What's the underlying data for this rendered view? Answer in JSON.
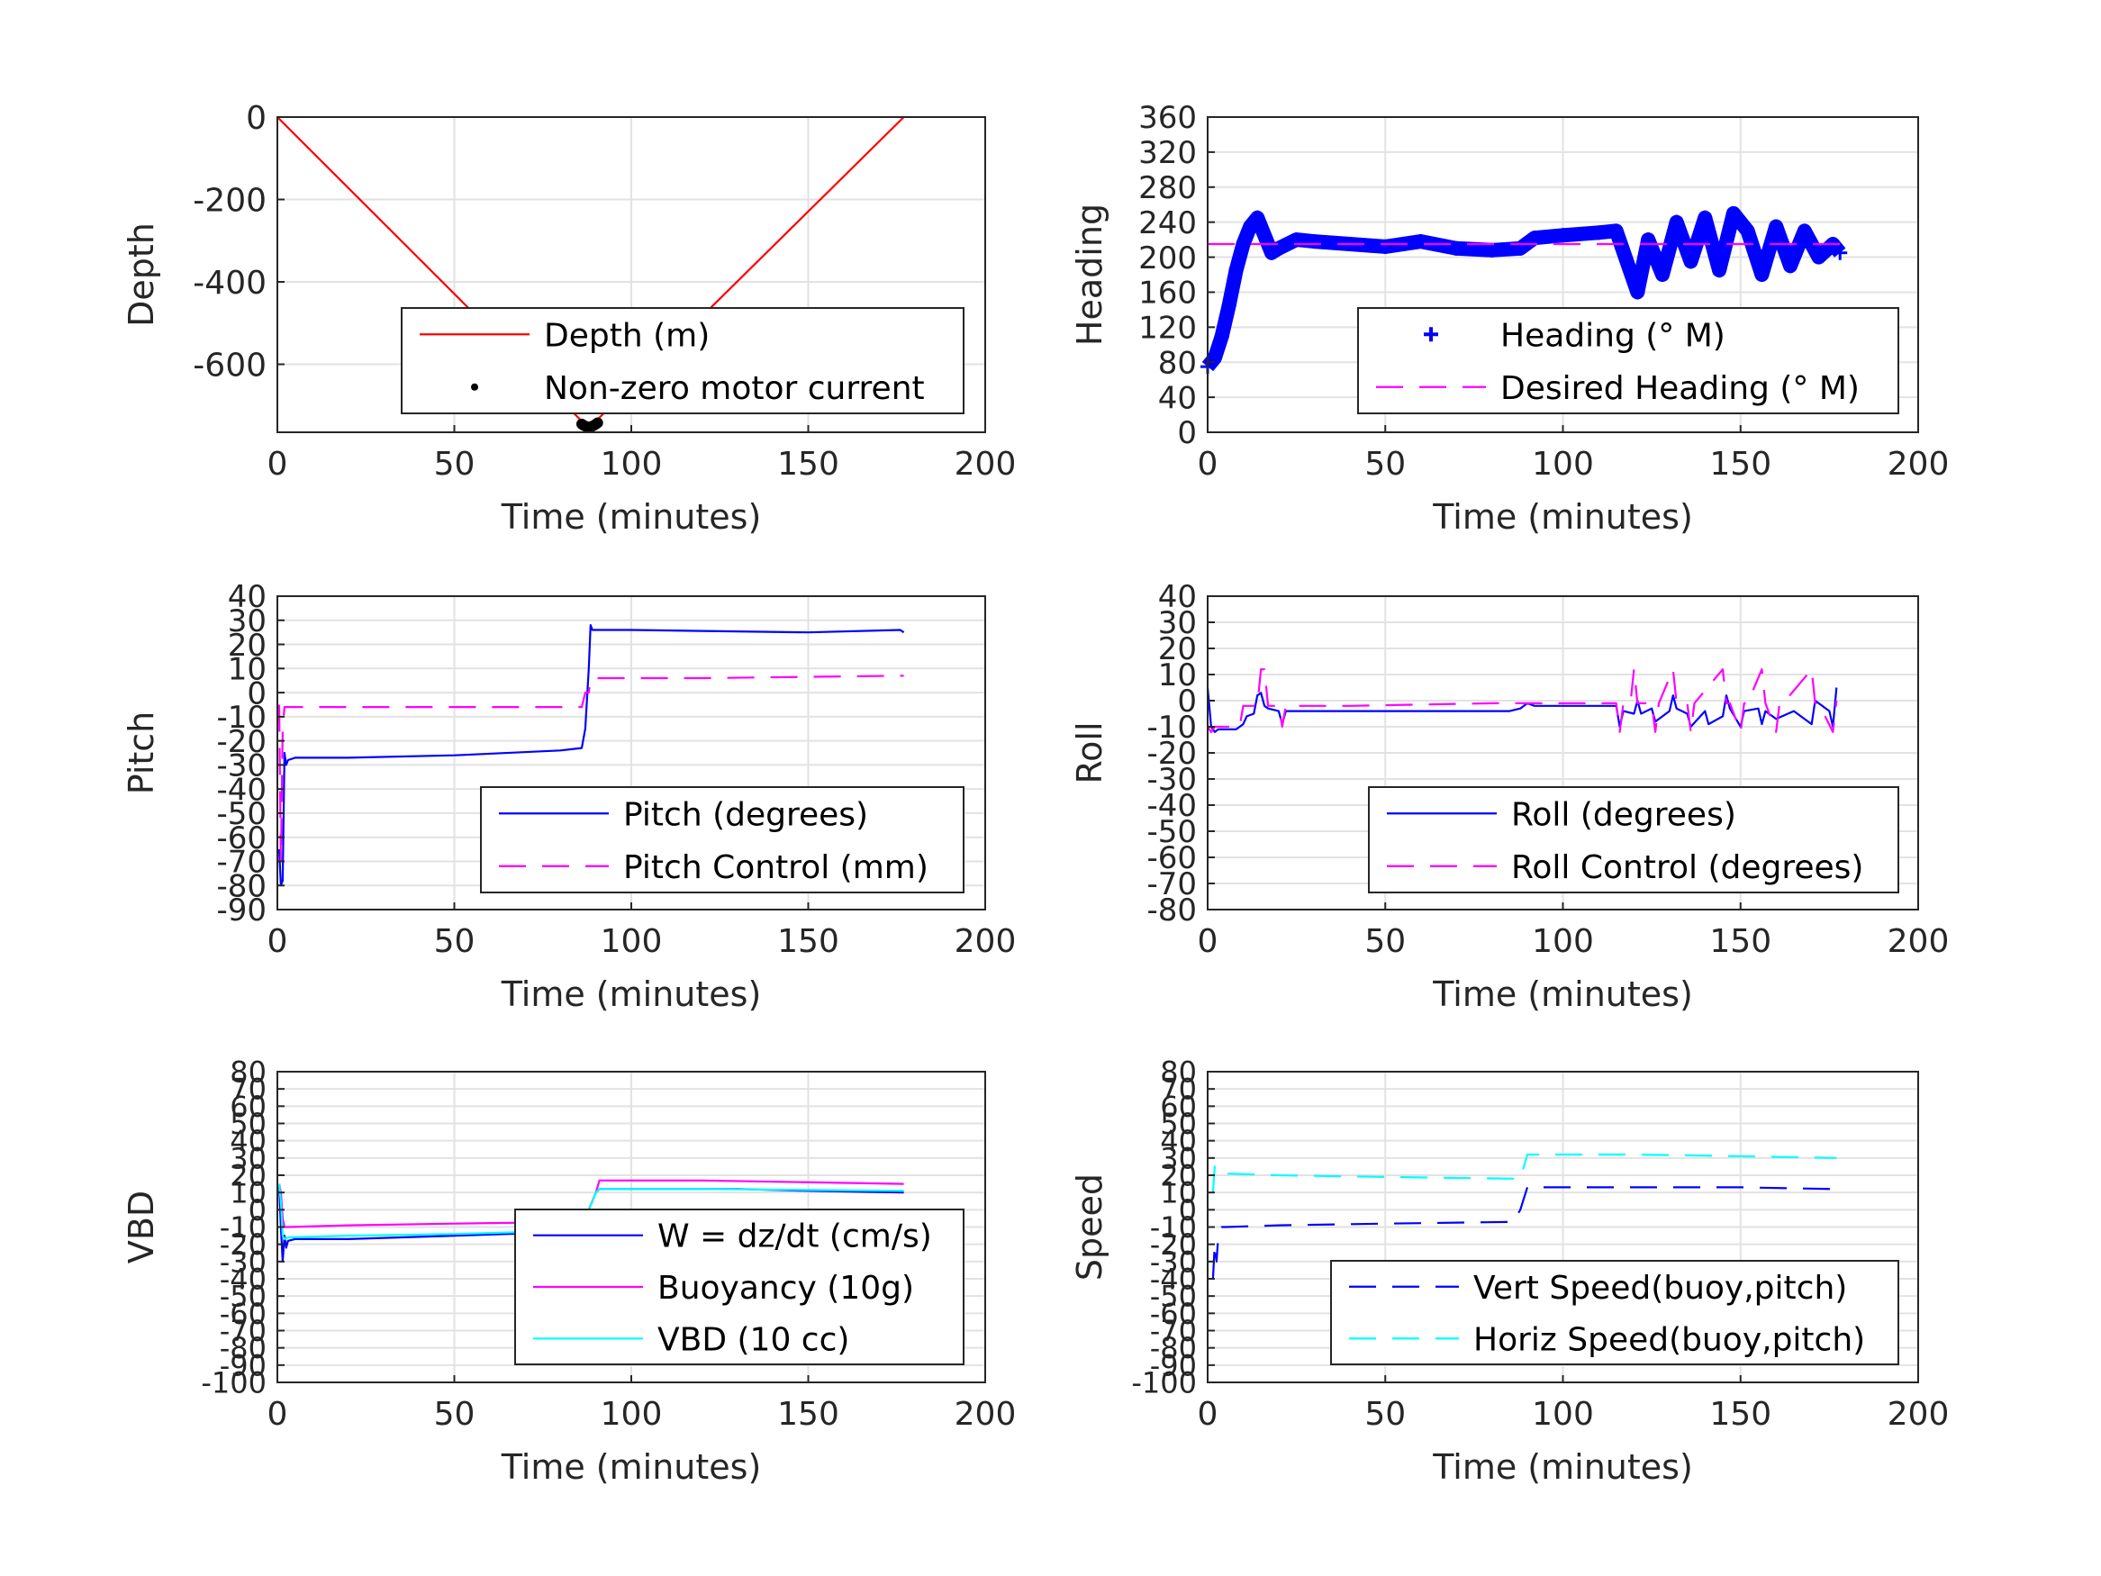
{
  "chart_data": [
    {
      "id": "depth",
      "type": "line",
      "xlabel": "Time (minutes)",
      "ylabel": "Depth",
      "xlim": [
        0,
        200
      ],
      "ylim": [
        -765,
        0
      ],
      "xticks": [
        0,
        50,
        100,
        150,
        200
      ],
      "yticks": [
        0,
        -200,
        -400,
        -600
      ],
      "grid": true,
      "legend_position": "bottom-right",
      "series": [
        {
          "name": "Depth (m)",
          "style": "solid",
          "marker": "none",
          "color": "#ff0000",
          "x": [
            0,
            88,
            177
          ],
          "y": [
            0,
            -755,
            0
          ]
        },
        {
          "name": "Non-zero motor current",
          "style": "none",
          "marker": "dot",
          "color": "#000000",
          "x": [
            86,
            86.5,
            87,
            87.5,
            88,
            88.5,
            89,
            89.5,
            90,
            90.5
          ],
          "y": [
            -745,
            -748,
            -750,
            -752,
            -753,
            -752,
            -750,
            -748,
            -745,
            -742
          ]
        }
      ]
    },
    {
      "id": "heading",
      "type": "line",
      "xlabel": "Time (minutes)",
      "ylabel": "Heading",
      "xlim": [
        0,
        200
      ],
      "ylim": [
        0,
        360
      ],
      "xticks": [
        0,
        50,
        100,
        150,
        200
      ],
      "yticks": [
        0,
        40,
        80,
        120,
        160,
        200,
        240,
        280,
        320,
        360
      ],
      "grid": true,
      "legend_position": "bottom-right",
      "series": [
        {
          "name": "Heading (° M)",
          "style": "thick",
          "marker": "plus",
          "color": "#0000ff",
          "x": [
            0,
            2,
            4,
            6,
            8,
            10,
            12,
            14,
            16,
            18,
            20,
            25,
            30,
            40,
            50,
            60,
            70,
            80,
            88,
            92,
            100,
            110,
            115,
            118,
            121,
            124,
            128,
            132,
            136,
            140,
            144,
            148,
            152,
            156,
            160,
            164,
            168,
            172,
            176,
            178
          ],
          "y": [
            75,
            85,
            110,
            145,
            185,
            215,
            235,
            245,
            225,
            205,
            210,
            220,
            218,
            215,
            212,
            218,
            210,
            208,
            210,
            222,
            225,
            228,
            230,
            195,
            160,
            220,
            180,
            240,
            195,
            245,
            185,
            250,
            230,
            180,
            235,
            190,
            230,
            200,
            215,
            205
          ]
        },
        {
          "name": "Desired Heading (° M)",
          "style": "dashed",
          "marker": "none",
          "color": "#ff00ff",
          "x": [
            0,
            178
          ],
          "y": [
            215,
            215
          ]
        }
      ]
    },
    {
      "id": "pitch",
      "type": "line",
      "xlabel": "Time (minutes)",
      "ylabel": "Pitch",
      "xlim": [
        0,
        200
      ],
      "ylim": [
        -90,
        40
      ],
      "xticks": [
        0,
        50,
        100,
        150,
        200
      ],
      "yticks": [
        -90,
        -80,
        -70,
        -60,
        -50,
        -40,
        -30,
        -20,
        -10,
        0,
        10,
        20,
        30,
        40
      ],
      "grid": true,
      "legend_position": "bottom-right",
      "series": [
        {
          "name": "Pitch (degrees)",
          "style": "solid",
          "marker": "none",
          "color": "#0000ff",
          "x": [
            0.5,
            1,
            1.5,
            2,
            2.5,
            3,
            5,
            20,
            50,
            80,
            86,
            87,
            88,
            88.5,
            89,
            90,
            100,
            150,
            176,
            177
          ],
          "y": [
            -65,
            -80,
            -78,
            -25,
            -30,
            -28,
            -27,
            -27,
            -26,
            -24,
            -23,
            -15,
            10,
            28,
            26,
            26,
            26,
            25,
            26,
            25
          ]
        },
        {
          "name": "Pitch Control (mm)",
          "style": "dashed",
          "marker": "none",
          "color": "#ff00ff",
          "x": [
            0.5,
            1,
            1.5,
            2,
            3,
            86,
            87,
            88,
            88.5,
            89,
            120,
            177
          ],
          "y": [
            -5,
            -70,
            -15,
            -6,
            -6,
            -6,
            0,
            0,
            6,
            6,
            6,
            7
          ]
        }
      ]
    },
    {
      "id": "roll",
      "type": "line",
      "xlabel": "Time (minutes)",
      "ylabel": "Roll",
      "xlim": [
        0,
        200
      ],
      "ylim": [
        -80,
        40
      ],
      "xticks": [
        0,
        50,
        100,
        150,
        200
      ],
      "yticks": [
        -80,
        -70,
        -60,
        -50,
        -40,
        -30,
        -20,
        -10,
        0,
        10,
        20,
        30,
        40
      ],
      "grid": true,
      "legend_position": "bottom-right",
      "series": [
        {
          "name": "Roll (degrees)",
          "style": "solid",
          "marker": "none",
          "color": "#0000ff",
          "x": [
            0,
            1,
            2,
            3,
            8,
            10,
            11,
            13,
            14,
            15,
            16,
            17,
            20,
            21,
            22,
            40,
            60,
            85,
            88,
            90,
            92,
            100,
            115,
            116,
            117,
            120,
            121,
            122,
            125,
            126,
            130,
            131,
            132,
            135,
            136,
            140,
            141,
            145,
            146,
            147,
            150,
            151,
            155,
            156,
            157,
            160,
            165,
            170,
            171,
            175,
            176,
            177
          ],
          "y": [
            5,
            -10,
            -12,
            -11,
            -11,
            -9,
            -6,
            -5,
            2,
            3,
            -2,
            -3,
            -4,
            -9,
            -4,
            -4,
            -4,
            -4,
            -3,
            -1,
            -2,
            -2,
            -2,
            -10,
            -4,
            -5,
            0,
            -5,
            -3,
            -8,
            -4,
            2,
            -3,
            -5,
            -10,
            -4,
            -9,
            -6,
            2,
            -3,
            -10,
            -4,
            -3,
            -9,
            -4,
            -7,
            -4,
            -9,
            0,
            -4,
            -10,
            5
          ]
        },
        {
          "name": "Roll Control (degrees)",
          "style": "dashed",
          "marker": "none",
          "color": "#ff00ff",
          "x": [
            0,
            1,
            2,
            9,
            10,
            14,
            15,
            16,
            17,
            20,
            21,
            22,
            40,
            80,
            110,
            115,
            116,
            117,
            119,
            120,
            121,
            122,
            125,
            126,
            127,
            131,
            132,
            133,
            135,
            136,
            137,
            145,
            146,
            147,
            150,
            151,
            152,
            156,
            157,
            160,
            161,
            162,
            170,
            171,
            172,
            176,
            177
          ],
          "y": [
            -10,
            -12,
            -10,
            -10,
            -2,
            -2,
            12,
            12,
            -2,
            -2,
            -10,
            -2,
            -2,
            -1,
            -1,
            -1,
            -12,
            -1,
            -1,
            12,
            -1,
            -1,
            -1,
            -12,
            -1,
            12,
            -1,
            -1,
            -1,
            -12,
            -1,
            12,
            -1,
            -1,
            -12,
            -1,
            -1,
            12,
            -1,
            -12,
            -1,
            -1,
            12,
            -1,
            -1,
            -12,
            0
          ]
        }
      ]
    },
    {
      "id": "vbd",
      "type": "line",
      "xlabel": "Time (minutes)",
      "ylabel": "VBD",
      "xlim": [
        0,
        200
      ],
      "ylim": [
        -100,
        80
      ],
      "xticks": [
        0,
        50,
        100,
        150,
        200
      ],
      "yticks": [
        -100,
        -90,
        -80,
        -70,
        -60,
        -50,
        -40,
        -30,
        -20,
        -10,
        0,
        10,
        20,
        30,
        40,
        50,
        60,
        70,
        80
      ],
      "grid": true,
      "legend_position": "bottom-right",
      "series": [
        {
          "name": "W = dz/dt (cm/s)",
          "style": "solid",
          "marker": "none",
          "color": "#0000ff",
          "x": [
            0.5,
            1,
            1.5,
            2,
            2.5,
            3,
            5,
            20,
            50,
            80,
            86,
            88,
            90,
            91,
            100,
            130,
            150,
            177
          ],
          "y": [
            15,
            -10,
            -30,
            -15,
            -22,
            -18,
            -17,
            -17,
            -15,
            -13,
            -12,
            0,
            10,
            12,
            12,
            12,
            11,
            10
          ]
        },
        {
          "name": "Buoyancy (10g)",
          "style": "solid",
          "marker": "none",
          "color": "#ff00ff",
          "x": [
            0.5,
            1,
            1.5,
            2,
            3,
            20,
            50,
            86,
            88,
            90,
            91,
            120,
            177
          ],
          "y": [
            15,
            10,
            -5,
            -10,
            -10,
            -9,
            -8,
            -7,
            0,
            10,
            17,
            17,
            15
          ]
        },
        {
          "name": "VBD (10 cc)",
          "style": "solid",
          "marker": "none",
          "color": "#00ffff",
          "x": [
            0.5,
            1,
            1.5,
            2,
            3,
            20,
            50,
            86,
            88,
            90,
            91,
            120,
            177
          ],
          "y": [
            15,
            5,
            -15,
            -17,
            -16,
            -15,
            -14,
            -12,
            0,
            10,
            12,
            12,
            11
          ]
        }
      ]
    },
    {
      "id": "speed",
      "type": "line",
      "xlabel": "Time (minutes)",
      "ylabel": "Speed",
      "xlim": [
        0,
        200
      ],
      "ylim": [
        -100,
        80
      ],
      "xticks": [
        0,
        50,
        100,
        150,
        200
      ],
      "yticks": [
        -100,
        -90,
        -80,
        -70,
        -60,
        -50,
        -40,
        -30,
        -20,
        -10,
        0,
        10,
        20,
        30,
        40,
        50,
        60,
        70,
        80
      ],
      "grid": true,
      "legend_position": "bottom-right",
      "series": [
        {
          "name": "Vert Speed(buoy,pitch)",
          "style": "dashed",
          "marker": "none",
          "color": "#0000ff",
          "x": [
            1.5,
            2,
            2.5,
            3,
            4,
            5,
            20,
            50,
            86,
            88,
            90,
            91,
            120,
            150,
            176,
            177
          ],
          "y": [
            -40,
            -20,
            -30,
            -15,
            -10,
            -10,
            -9,
            -8,
            -7,
            0,
            13,
            13,
            13,
            13,
            12,
            11
          ]
        },
        {
          "name": "Horiz Speed(buoy,pitch)",
          "style": "dashed",
          "marker": "none",
          "color": "#00ffff",
          "x": [
            1.5,
            2,
            2.5,
            3,
            5,
            20,
            50,
            86,
            88,
            90,
            91,
            120,
            150,
            177
          ],
          "y": [
            10,
            25,
            22,
            21,
            21,
            20,
            19,
            18,
            18,
            32,
            32,
            32,
            31,
            30
          ]
        }
      ]
    }
  ]
}
